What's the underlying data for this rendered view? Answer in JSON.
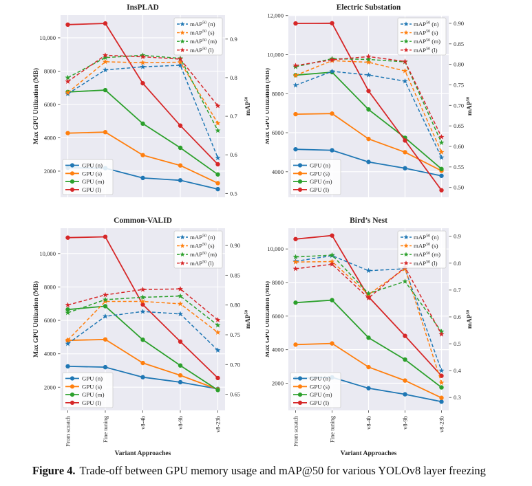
{
  "figure": {
    "caption_label": "Figure 4.",
    "caption_text": "Trade-off between GPU memory usage and mAP@50 for various YOLOv8 layer freezing"
  },
  "colors": {
    "n": "#1f77b4",
    "s": "#ff7f0e",
    "m": "#2ca02c",
    "l": "#d62728",
    "panel_bg": "#eaeaf2",
    "grid": "#ffffff",
    "tick": "#555555",
    "text": "#262626",
    "legend_bg": "rgba(255,255,255,0.85)",
    "legend_border": "#cccccc"
  },
  "chart_data": [
    {
      "id": "insplad",
      "type": "line",
      "title": "InsPLAD",
      "categories": [
        "From scratch",
        "Fine tuning",
        "v8-4b",
        "v8-9b",
        "v8-23b"
      ],
      "x_axis_label": "Variant Approaches",
      "show_x_tick_labels": false,
      "left_axis": {
        "label": "Max GPU Utilization (MB)",
        "min": 430,
        "max": 11360,
        "ticks": [
          2000,
          4000,
          6000,
          8000,
          10000
        ]
      },
      "right_axis": {
        "label": "mAP50",
        "min": 0.49,
        "max": 0.962,
        "ticks": [
          0.5,
          0.6,
          0.7,
          0.8,
          0.9
        ],
        "decimals": 1
      },
      "gpu_series": [
        {
          "key": "n",
          "label": "GPU (n)",
          "values": [
            2200,
            2180,
            1590,
            1450,
            920
          ]
        },
        {
          "key": "s",
          "label": "GPU (s)",
          "values": [
            4280,
            4340,
            2960,
            2340,
            1280
          ]
        },
        {
          "key": "m",
          "label": "GPU (m)",
          "values": [
            6750,
            6860,
            4850,
            3400,
            1800
          ]
        },
        {
          "key": "l",
          "label": "GPU (l)",
          "values": [
            10790,
            10860,
            7270,
            4730,
            2410
          ]
        }
      ],
      "map_series": [
        {
          "key": "n",
          "label": "mAP50 (n)",
          "values": [
            0.758,
            0.82,
            0.828,
            0.832,
            0.592
          ]
        },
        {
          "key": "s",
          "label": "mAP50 (s)",
          "values": [
            0.761,
            0.841,
            0.839,
            0.84,
            0.682
          ]
        },
        {
          "key": "m",
          "label": "mAP50 (m)",
          "values": [
            0.8,
            0.852,
            0.858,
            0.85,
            0.663
          ]
        },
        {
          "key": "l",
          "label": "mAP50 (l)",
          "values": [
            0.79,
            0.858,
            0.854,
            0.848,
            0.727
          ]
        }
      ]
    },
    {
      "id": "electric-substation",
      "type": "line",
      "title": "Electric Substation",
      "categories": [
        "From scratch",
        "Fine tuning",
        "v8-4b",
        "v8-9b",
        "v8-23b"
      ],
      "x_axis_label": "Variant Approaches",
      "show_x_tick_labels": false,
      "left_axis": {
        "label": "Max GPU Utilization (MB)",
        "min": 2690,
        "max": 12025,
        "ticks": [
          4000,
          6000,
          8000,
          10000,
          12000
        ]
      },
      "right_axis": {
        "label": "mAP50",
        "min": 0.476,
        "max": 0.92,
        "ticks": [
          0.5,
          0.55,
          0.6,
          0.65,
          0.7,
          0.75,
          0.8,
          0.85,
          0.9
        ],
        "decimals": 2
      },
      "gpu_series": [
        {
          "key": "n",
          "label": "GPU (n)",
          "values": [
            5150,
            5100,
            4500,
            4180,
            3790
          ]
        },
        {
          "key": "s",
          "label": "GPU (s)",
          "values": [
            6950,
            6980,
            5680,
            5000,
            4050
          ]
        },
        {
          "key": "m",
          "label": "GPU (m)",
          "values": [
            8950,
            9100,
            7190,
            5740,
            4140
          ]
        },
        {
          "key": "l",
          "label": "GPU (l)",
          "values": [
            11600,
            11610,
            8140,
            5600,
            3050
          ]
        }
      ],
      "map_series": [
        {
          "key": "n",
          "label": "mAP50 (n)",
          "values": [
            0.749,
            0.783,
            0.774,
            0.759,
            0.573
          ]
        },
        {
          "key": "s",
          "label": "mAP50 (s)",
          "values": [
            0.773,
            0.809,
            0.805,
            0.784,
            0.586
          ]
        },
        {
          "key": "m",
          "label": "mAP50 (m)",
          "values": [
            0.794,
            0.814,
            0.812,
            0.806,
            0.609
          ]
        },
        {
          "key": "l",
          "label": "mAP50 (l)",
          "values": [
            0.797,
            0.811,
            0.819,
            0.807,
            0.623
          ]
        }
      ]
    },
    {
      "id": "common-valid",
      "type": "line",
      "title": "Common-VALID",
      "categories": [
        "From scratch",
        "Fine tuning",
        "v8-4b",
        "v8-9b",
        "v8-23b"
      ],
      "x_axis_label": "Variant Approaches",
      "show_x_tick_labels": true,
      "left_axis": {
        "label": "Max GPU Utilization (MB)",
        "min": 613,
        "max": 11515,
        "ticks": [
          2000,
          4000,
          6000,
          8000,
          10000
        ]
      },
      "right_axis": {
        "label": "mAP50",
        "min": 0.623,
        "max": 0.929,
        "ticks": [
          0.65,
          0.7,
          0.75,
          0.8,
          0.85,
          0.9
        ],
        "decimals": 2
      },
      "gpu_series": [
        {
          "key": "n",
          "label": "GPU (n)",
          "values": [
            3250,
            3200,
            2600,
            2300,
            1900
          ]
        },
        {
          "key": "s",
          "label": "GPU (s)",
          "values": [
            4800,
            4860,
            3450,
            2710,
            1870
          ]
        },
        {
          "key": "m",
          "label": "GPU (m)",
          "values": [
            6650,
            6850,
            4840,
            3300,
            1830
          ]
        },
        {
          "key": "l",
          "label": "GPU (l)",
          "values": [
            10950,
            11000,
            6950,
            4730,
            2550
          ]
        }
      ],
      "map_series": [
        {
          "key": "n",
          "label": "mAP50 (n)",
          "values": [
            0.735,
            0.781,
            0.789,
            0.785,
            0.724
          ]
        },
        {
          "key": "s",
          "label": "mAP50 (s)",
          "values": [
            0.741,
            0.806,
            0.806,
            0.802,
            0.754
          ]
        },
        {
          "key": "m",
          "label": "mAP50 (m)",
          "values": [
            0.787,
            0.809,
            0.813,
            0.815,
            0.766
          ]
        },
        {
          "key": "l",
          "label": "mAP50 (l)",
          "values": [
            0.8,
            0.817,
            0.826,
            0.827,
            0.775
          ]
        }
      ]
    },
    {
      "id": "birds-nest",
      "type": "line",
      "title": "Bird’s Nest",
      "categories": [
        "From scratch",
        "Fine tuning",
        "v8-4b",
        "v8-9b",
        "v8-23b"
      ],
      "x_axis_label": "Variant Approaches",
      "show_x_tick_labels": true,
      "left_axis": {
        "label": "Max GPU Utilization (MB)",
        "min": 381,
        "max": 11236,
        "ticks": [
          2000,
          4000,
          6000,
          8000,
          10000
        ]
      },
      "right_axis": {
        "label": "mAP50",
        "min": 0.252,
        "max": 0.93,
        "ticks": [
          0.3,
          0.4,
          0.5,
          0.6,
          0.7,
          0.8,
          0.9
        ],
        "decimals": 1
      },
      "gpu_series": [
        {
          "key": "n",
          "label": "GPU (n)",
          "values": [
            2300,
            2350,
            1700,
            1340,
            900
          ]
        },
        {
          "key": "s",
          "label": "GPU (s)",
          "values": [
            4300,
            4370,
            2960,
            2160,
            1130
          ]
        },
        {
          "key": "m",
          "label": "GPU (m)",
          "values": [
            6800,
            6950,
            4710,
            3410,
            1750
          ]
        },
        {
          "key": "l",
          "label": "GPU (l)",
          "values": [
            10590,
            10800,
            7150,
            4820,
            2440
          ]
        }
      ],
      "map_series": [
        {
          "key": "n",
          "label": "mAP50 (n)",
          "values": [
            0.807,
            0.828,
            0.772,
            0.779,
            0.4
          ]
        },
        {
          "key": "s",
          "label": "mAP50 (s)",
          "values": [
            0.804,
            0.806,
            0.683,
            0.78,
            0.355
          ]
        },
        {
          "key": "m",
          "label": "mAP50 (m)",
          "values": [
            0.823,
            0.83,
            0.687,
            0.732,
            0.545
          ]
        },
        {
          "key": "l",
          "label": "mAP50 (l)",
          "values": [
            0.779,
            0.796,
            0.67,
            0.785,
            0.535
          ]
        }
      ]
    }
  ]
}
